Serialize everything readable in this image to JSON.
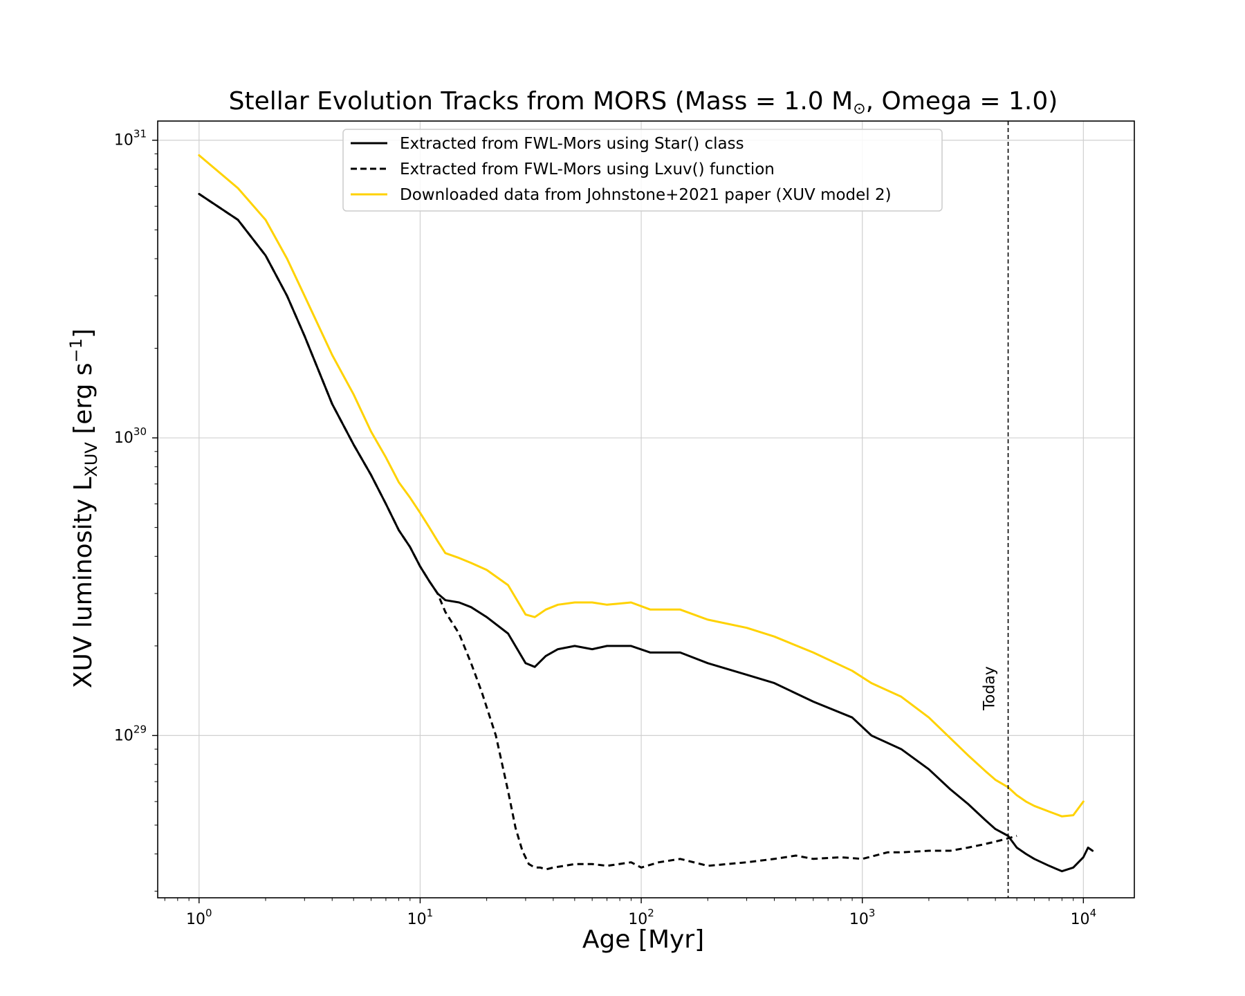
{
  "chart_data": {
    "type": "line",
    "title_main": "Stellar Evolution Tracks from MORS (Mass = 1.0 M",
    "title_sun": "⊙",
    "title_tail": ", Omega = 1.0)",
    "xlabel": "Age [Myr]",
    "ylabel_main": "XUV luminosity L",
    "ylabel_sub": "XUV",
    "ylabel_units": " [erg s",
    "ylabel_exp": "−1",
    "ylabel_close": "]",
    "xscale": "log",
    "yscale": "log",
    "xlim": [
      0.65,
      17000
    ],
    "ylim": [
      2.85e+28,
      1.16e+31
    ],
    "grid": true,
    "legend_position": "top-center",
    "x_ticks": [
      {
        "value": 1,
        "base": "10",
        "exp": "0"
      },
      {
        "value": 10,
        "base": "10",
        "exp": "1"
      },
      {
        "value": 100,
        "base": "10",
        "exp": "2"
      },
      {
        "value": 1000,
        "base": "10",
        "exp": "3"
      },
      {
        "value": 10000,
        "base": "10",
        "exp": "4"
      }
    ],
    "y_ticks": [
      {
        "value": 1e+29,
        "base": "10",
        "exp": "29"
      },
      {
        "value": 1e+30,
        "base": "10",
        "exp": "30"
      },
      {
        "value": 1e+31,
        "base": "10",
        "exp": "31"
      }
    ],
    "vline": {
      "x": 4567,
      "label": "Today"
    },
    "series": [
      {
        "name": "Extracted from FWL-Mors using Star() class",
        "color": "#000000",
        "style": "solid",
        "x": [
          1,
          1.5,
          2,
          2.5,
          3,
          4,
          5,
          6,
          7,
          8,
          9,
          10,
          11,
          12,
          13,
          15,
          17,
          20,
          25,
          30,
          33,
          37,
          42,
          50,
          60,
          70,
          90,
          110,
          150,
          200,
          300,
          400,
          600,
          900,
          1100,
          1500,
          2000,
          2500,
          3000,
          3600,
          4000,
          4567,
          5000,
          5500,
          6000,
          7000,
          8000,
          9000,
          10000,
          10500,
          11000
        ],
        "y": [
          6.6e+30,
          5.4e+30,
          4.1e+30,
          3e+30,
          2.2e+30,
          1.3e+30,
          9.5e+29,
          7.5e+29,
          6e+29,
          4.9e+29,
          4.3e+29,
          3.7e+29,
          3.3e+29,
          3e+29,
          2.85e+29,
          2.8e+29,
          2.7e+29,
          2.5e+29,
          2.2e+29,
          1.75e+29,
          1.7e+29,
          1.85e+29,
          1.95e+29,
          2e+29,
          1.95e+29,
          2e+29,
          2e+29,
          1.9e+29,
          1.9e+29,
          1.75e+29,
          1.6e+29,
          1.5e+29,
          1.3e+29,
          1.15e+29,
          1e+29,
          9e+28,
          7.7e+28,
          6.6e+28,
          5.9e+28,
          5.2e+28,
          4.85e+28,
          4.6e+28,
          4.2e+28,
          4e+28,
          3.85e+28,
          3.65e+28,
          3.5e+28,
          3.6e+28,
          3.9e+28,
          4.2e+28,
          4.1e+28
        ]
      },
      {
        "name": "Extracted from FWL-Mors using Lxuv() function",
        "color": "#000000",
        "style": "dashed",
        "x": [
          1,
          1.5,
          2,
          2.5,
          3,
          4,
          5,
          6,
          7,
          8,
          9,
          10,
          11,
          12,
          13,
          15,
          17,
          19,
          22,
          25,
          27,
          29,
          31,
          33,
          35,
          37,
          40,
          45,
          50,
          60,
          70,
          90,
          100,
          120,
          150,
          200,
          300,
          400,
          500,
          600,
          800,
          1000,
          1300,
          1500,
          2000,
          2500,
          3000,
          3500,
          4000,
          4500,
          5000
        ],
        "y": [
          6.6e+30,
          5.4e+30,
          4.1e+30,
          3e+30,
          2.2e+30,
          1.3e+30,
          9.5e+29,
          7.5e+29,
          6e+29,
          4.9e+29,
          4.3e+29,
          3.7e+29,
          3.3e+29,
          3e+29,
          2.6e+29,
          2.2e+29,
          1.75e+29,
          1.4e+29,
          1e+29,
          6.5e+28,
          4.9e+28,
          4.1e+28,
          3.7e+28,
          3.6e+28,
          3.6e+28,
          3.55e+28,
          3.6e+28,
          3.65e+28,
          3.7e+28,
          3.7e+28,
          3.65e+28,
          3.75e+28,
          3.6e+28,
          3.75e+28,
          3.85e+28,
          3.65e+28,
          3.75e+28,
          3.85e+28,
          3.95e+28,
          3.85e+28,
          3.9e+28,
          3.85e+28,
          4.05e+28,
          4.05e+28,
          4.1e+28,
          4.1e+28,
          4.2e+28,
          4.3e+28,
          4.4e+28,
          4.5e+28,
          4.6e+28
        ]
      },
      {
        "name": "Downloaded data from Johnstone+2021 paper (XUV model 2)",
        "color": "#ffd200",
        "style": "solid",
        "x": [
          1,
          1.5,
          2,
          2.5,
          3,
          4,
          5,
          6,
          7,
          8,
          9,
          10,
          11,
          12,
          13,
          15,
          17,
          20,
          25,
          30,
          33,
          37,
          42,
          50,
          60,
          70,
          90,
          110,
          150,
          200,
          300,
          400,
          600,
          900,
          1100,
          1500,
          2000,
          2500,
          3000,
          3600,
          4000,
          4567,
          5000,
          5500,
          6000,
          7000,
          8000,
          9000,
          10000
        ],
        "y": [
          8.9e+30,
          6.9e+30,
          5.4e+30,
          4e+30,
          3e+30,
          1.9e+30,
          1.4e+30,
          1.05e+30,
          8.6e+29,
          7.1e+29,
          6.3e+29,
          5.6e+29,
          5e+29,
          4.5e+29,
          4.1e+29,
          3.95e+29,
          3.8e+29,
          3.6e+29,
          3.2e+29,
          2.55e+29,
          2.5e+29,
          2.65e+29,
          2.75e+29,
          2.8e+29,
          2.8e+29,
          2.75e+29,
          2.8e+29,
          2.65e+29,
          2.65e+29,
          2.45e+29,
          2.3e+29,
          2.15e+29,
          1.9e+29,
          1.65e+29,
          1.5e+29,
          1.35e+29,
          1.15e+29,
          9.8e+28,
          8.6e+28,
          7.6e+28,
          7.1e+28,
          6.7e+28,
          6.3e+28,
          6e+28,
          5.8e+28,
          5.55e+28,
          5.35e+28,
          5.4e+28,
          6e+28
        ]
      }
    ]
  }
}
